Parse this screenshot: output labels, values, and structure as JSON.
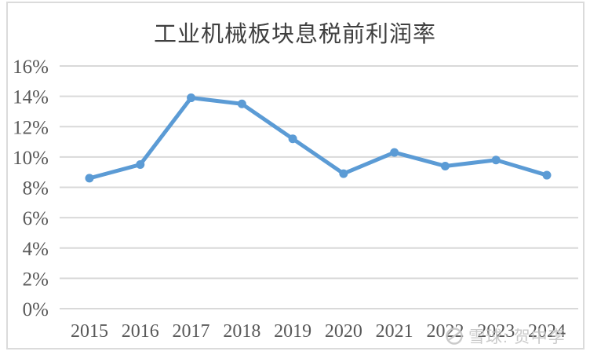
{
  "chart_data": {
    "type": "line",
    "title": "工业机械板块息税前利润率",
    "categories": [
      "2015",
      "2016",
      "2017",
      "2018",
      "2019",
      "2020",
      "2021",
      "2022",
      "2023",
      "2024"
    ],
    "values": [
      8.6,
      9.5,
      13.9,
      13.5,
      11.2,
      8.9,
      10.3,
      9.4,
      9.8,
      8.8
    ],
    "unit": "%",
    "xlabel": "",
    "ylabel": "",
    "ylim": [
      0,
      16
    ],
    "yticks": [
      {
        "value": 0,
        "label": "0%"
      },
      {
        "value": 2,
        "label": "2%"
      },
      {
        "value": 4,
        "label": "4%"
      },
      {
        "value": 6,
        "label": "6%"
      },
      {
        "value": 8,
        "label": "8%"
      },
      {
        "value": 10,
        "label": "10%"
      },
      {
        "value": 12,
        "label": "12%"
      },
      {
        "value": 14,
        "label": "14%"
      },
      {
        "value": 16,
        "label": "16%"
      }
    ],
    "grid": true,
    "legend_position": "none"
  },
  "watermark": {
    "text": "雪球: 贺中李",
    "icon": "xueqiu-snowball-logo"
  },
  "colors": {
    "line": "#5B9BD5",
    "marker": "#5B9BD5",
    "grid": "#D9D9D9",
    "axis_text": "#595959",
    "title_text": "#404040",
    "frame": "#DBDBDB",
    "watermark": "#C6C6C6"
  }
}
